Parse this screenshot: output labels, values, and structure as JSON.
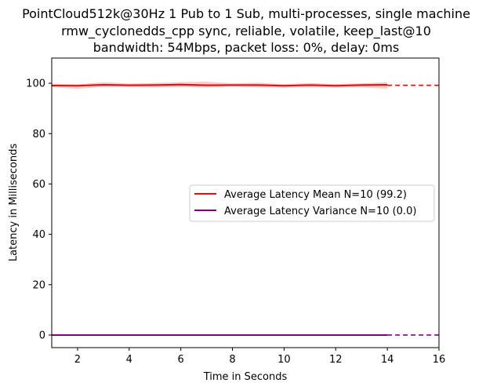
{
  "chart_data": {
    "type": "line",
    "title_lines": [
      "PointCloud512k@30Hz 1 Pub to 1 Sub, multi-processes, single machine",
      "rmw_cyclonedds_cpp sync, reliable, volatile, keep_last@10",
      "bandwidth: 54Mbps, packet loss: 0%, delay: 0ms"
    ],
    "xlabel": "Time in Seconds",
    "ylabel": "Latency in Milliseconds",
    "xlim": [
      1,
      16
    ],
    "ylim": [
      -5,
      110
    ],
    "xticks": [
      2,
      4,
      6,
      8,
      10,
      12,
      14,
      16
    ],
    "yticks": [
      0,
      20,
      40,
      60,
      80,
      100
    ],
    "grid": false,
    "legend_position": "center-right",
    "series": [
      {
        "name": "Average Latency Mean N=10 (99.2)",
        "color": "#ff0000",
        "band_color": "#ff9999",
        "x": [
          1,
          2,
          3,
          4,
          5,
          6,
          7,
          8,
          9,
          10,
          11,
          12,
          13,
          14
        ],
        "values": [
          99.1,
          99.0,
          99.4,
          99.2,
          99.3,
          99.5,
          99.2,
          99.3,
          99.3,
          99.0,
          99.3,
          99.0,
          99.3,
          99.4
        ],
        "lower": [
          98.5,
          97.8,
          98.6,
          98.5,
          98.3,
          98.6,
          98.3,
          98.7,
          98.4,
          98.2,
          98.4,
          98.2,
          98.4,
          97.8
        ],
        "upper": [
          99.8,
          99.6,
          100.4,
          99.9,
          100.1,
          100.5,
          100.6,
          100.0,
          100.2,
          99.7,
          100.1,
          99.7,
          100.0,
          100.4
        ],
        "reference": 99.2
      },
      {
        "name": "Average Latency Variance N=10 (0.0)",
        "color": "#800080",
        "band_color": "#c080c0",
        "x": [
          1,
          2,
          3,
          4,
          5,
          6,
          7,
          8,
          9,
          10,
          11,
          12,
          13,
          14
        ],
        "values": [
          0,
          0,
          0,
          0,
          0,
          0,
          0,
          0,
          0,
          0,
          0,
          0,
          0,
          0
        ],
        "lower": [
          0,
          0,
          0,
          0,
          0,
          0,
          0,
          0,
          0,
          0,
          0,
          0,
          0,
          0
        ],
        "upper": [
          0,
          0,
          0,
          0,
          0,
          0,
          0,
          0,
          0,
          0,
          0,
          0,
          0,
          0
        ],
        "reference": 0.0
      }
    ]
  }
}
